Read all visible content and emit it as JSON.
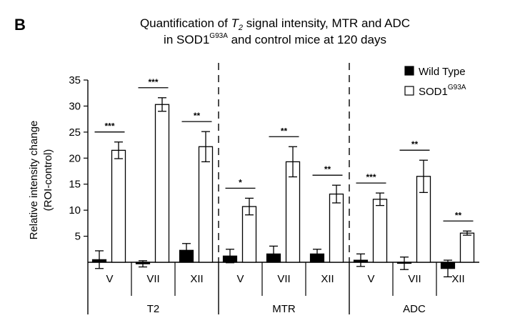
{
  "panel_label": "B",
  "chart_data": {
    "type": "bar",
    "title_line1_pre": "Quantification of ",
    "title_line1_T": "T",
    "title_line1_sub": "2",
    "title_line1_post": " signal intensity, MTR and ADC",
    "title_line2_pre": "in SOD1",
    "title_line2_sup": "G93A",
    "title_line2_post": " and control mice at 120 days",
    "ylabel_line1": "Relative intensity change",
    "ylabel_line2": "(ROI-control)",
    "ylim": [
      0,
      35
    ],
    "yticks": [
      "5",
      "10",
      "15",
      "20",
      "25",
      "30",
      "35"
    ],
    "ytick_values": [
      5,
      10,
      15,
      20,
      25,
      30,
      35
    ],
    "groups": [
      {
        "label": "T2",
        "categories": [
          "V",
          "VII",
          "XII"
        ]
      },
      {
        "label": "MTR",
        "categories": [
          "V",
          "VII",
          "XII"
        ]
      },
      {
        "label": "ADC",
        "categories": [
          "V",
          "VII",
          "XII"
        ]
      }
    ],
    "legend": [
      {
        "name": "Wild Type",
        "color": "#000000"
      },
      {
        "name": "SOD1",
        "sup": "G93A",
        "color": "#ffffff"
      }
    ],
    "series": [
      {
        "key": "wild_type",
        "values": [
          0.5,
          -0.3,
          2.3,
          1.2,
          1.6,
          1.6,
          0.4,
          -0.2,
          -1.2
        ],
        "errors": [
          1.7,
          0.6,
          1.3,
          1.3,
          1.5,
          0.9,
          1.2,
          1.2,
          1.6
        ]
      },
      {
        "key": "sod1",
        "values": [
          21.5,
          30.3,
          22.2,
          10.7,
          19.3,
          13.1,
          12.1,
          16.5,
          5.6
        ],
        "errors": [
          1.6,
          1.3,
          2.9,
          1.6,
          2.9,
          1.7,
          1.2,
          3.1,
          0.4
        ]
      }
    ],
    "significance": [
      "***",
      "***",
      "**",
      "*",
      "**",
      "**",
      "***",
      "**",
      "**"
    ]
  }
}
